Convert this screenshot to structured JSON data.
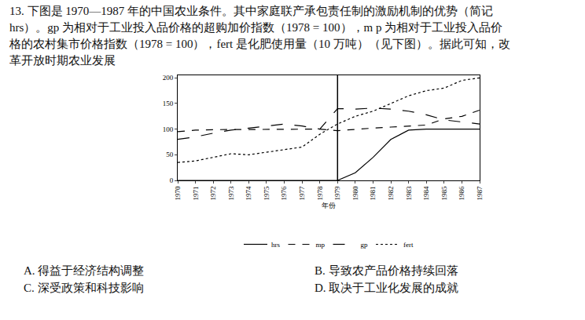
{
  "question": {
    "lines": [
      "13. 下图是 1970—1987 年的中国农业条件。其中家庭联产承包责任制的激励机制的优势（简记",
      "hrs）。gp 为相对于工业投入品价格的超购加价指数（1978 = 100），m p 为相对于工业投入品价",
      "格的农村集市价格指数（1978 = 100），fert 是化肥使用量（10 万吨）（见下图）。据此可知，改",
      "革开放时期农业发展"
    ]
  },
  "chart_data": {
    "type": "line",
    "x_label": "年份",
    "x": [
      1970,
      1971,
      1972,
      1973,
      1974,
      1975,
      1976,
      1977,
      1978,
      1979,
      1980,
      1981,
      1982,
      1983,
      1984,
      1985,
      1986,
      1987
    ],
    "series": [
      {
        "name": "hrs",
        "color": "#000000",
        "line_style": "solid",
        "values": [
          0,
          0,
          0,
          0,
          0,
          0,
          0,
          0,
          0,
          0,
          15,
          45,
          80,
          98,
          100,
          100,
          100,
          100
        ]
      },
      {
        "name": "mp",
        "color": "#000000",
        "line_style": "dash",
        "values": [
          95,
          98,
          99,
          99,
          99,
          100,
          100,
          100,
          100,
          97,
          100,
          102,
          104,
          106,
          108,
          120,
          125,
          137
        ]
      },
      {
        "name": "gp",
        "color": "#000000",
        "line_style": "longdash",
        "values": [
          80,
          85,
          92,
          98,
          102,
          106,
          110,
          106,
          100,
          140,
          139,
          141,
          139,
          135,
          128,
          118,
          114,
          110
        ]
      },
      {
        "name": "fert",
        "color": "#000000",
        "line_style": "dot",
        "values": [
          35,
          38,
          45,
          52,
          50,
          55,
          60,
          65,
          90,
          110,
          125,
          135,
          150,
          165,
          175,
          180,
          195,
          200
        ]
      }
    ],
    "vline": 1979,
    "xlim": [
      1970,
      1987
    ],
    "xticks": [
      1970,
      1971,
      1972,
      1973,
      1974,
      1975,
      1976,
      1977,
      1978,
      1979,
      1980,
      1981,
      1982,
      1983,
      1984,
      1985,
      1986,
      1987
    ],
    "ylim": [
      0,
      205
    ],
    "yticks": [
      0,
      50,
      100,
      150,
      200
    ],
    "grid": false,
    "legend": "bottom"
  },
  "options": [
    "A. 得益于经济结构调整",
    "B. 导致农产品价格持续回落",
    "C. 深受政策和科技影响",
    "D. 取决于工业化发展的成就"
  ]
}
